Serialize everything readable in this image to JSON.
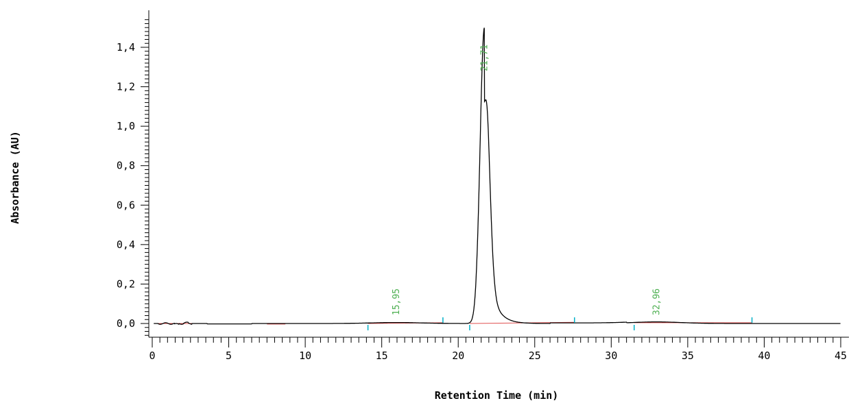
{
  "chart_data": {
    "type": "line",
    "title": "",
    "xlabel": "Retention Time (min)",
    "ylabel": "Absorbance (AU)",
    "xlim": [
      0,
      45
    ],
    "ylim": [
      -0.07,
      1.56
    ],
    "x_ticks": [
      "0",
      "5",
      "10",
      "15",
      "20",
      "25",
      "30",
      "35",
      "40",
      "45"
    ],
    "y_ticks": [
      "0,0",
      "0,2",
      "0,4",
      "0,6",
      "0,8",
      "1,0",
      "1,2",
      "1,4"
    ],
    "grid": false,
    "colors": {
      "trace": "#000000",
      "baseline": "#e05050",
      "peak_label": "#4caf50",
      "integration_mark": "#00b0c8"
    },
    "peaks": [
      {
        "label": "15,95",
        "rt": 15.95,
        "height": 0.005
      },
      {
        "label": "21,71",
        "rt": 21.71,
        "height": 1.5
      },
      {
        "label": "32,96",
        "rt": 32.96,
        "height": 0.008
      }
    ],
    "integration_marks": [
      {
        "x": 14.1,
        "side": "below"
      },
      {
        "x": 19.0,
        "side": "above"
      },
      {
        "x": 20.75,
        "side": "below"
      },
      {
        "x": 27.6,
        "side": "above"
      },
      {
        "x": 31.5,
        "side": "below"
      },
      {
        "x": 39.2,
        "side": "above"
      }
    ]
  }
}
